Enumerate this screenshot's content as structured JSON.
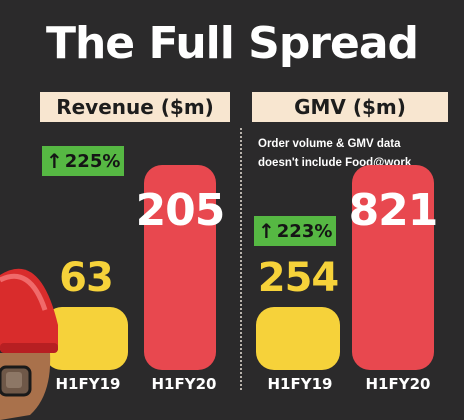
{
  "title": "The Full Spread",
  "colors": {
    "background": "#2b2a2b",
    "bar_h1fy19": "#f6d23a",
    "bar_h1fy20": "#e8484f",
    "growth_badge": "#56b843",
    "panel_header": "#f8e6d0"
  },
  "chart_data": [
    {
      "type": "bar",
      "title": "Revenue ($m)",
      "categories": [
        "H1FY19",
        "H1FY20"
      ],
      "values": [
        63,
        205
      ],
      "growth_label": "225%",
      "growth_icon": "up-arrow-icon"
    },
    {
      "type": "bar",
      "title": "GMV ($m)",
      "categories": [
        "H1FY19",
        "H1FY20"
      ],
      "values": [
        254,
        821
      ],
      "growth_label": "223%",
      "growth_icon": "up-arrow-icon",
      "note": "Order volume & GMV data doesn't include Food@work"
    }
  ],
  "decorations": {
    "corner_illustration": "delivery-rider-helmet"
  }
}
